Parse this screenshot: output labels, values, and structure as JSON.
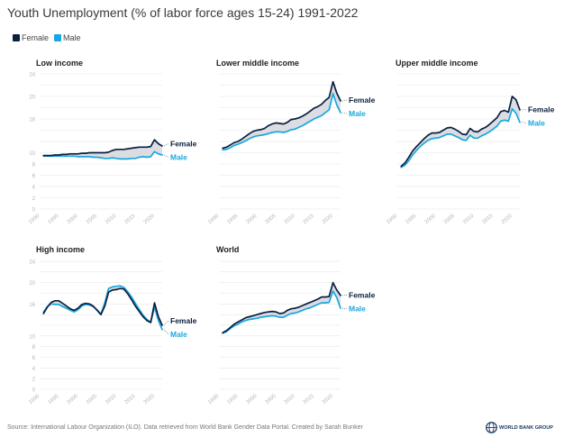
{
  "title": "Youth Unemployment (% of labor force ages 15-24) 1991-2022",
  "legend": [
    {
      "label": "Female",
      "color": "#0b1f3f"
    },
    {
      "label": "Male",
      "color": "#1aa7e0"
    }
  ],
  "footer": "Source: International Labour Organization (ILO). Data retrieved from World Bank Gender Data Portal. Created by Sarah Bunker",
  "logo_text": "WORLD BANK GROUP",
  "colors": {
    "female": "#0b1f3f",
    "male": "#1aa7e0",
    "band": "#dcdde3",
    "grid": "#e6e6e6",
    "tick": "#b5b5b5"
  },
  "chart_data": [
    {
      "type": "line",
      "title": "Low income",
      "x": [
        1991,
        1992,
        1993,
        1994,
        1995,
        1996,
        1997,
        1998,
        1999,
        2000,
        2001,
        2002,
        2003,
        2004,
        2005,
        2006,
        2007,
        2008,
        2009,
        2010,
        2011,
        2012,
        2013,
        2014,
        2015,
        2016,
        2017,
        2018,
        2019,
        2020,
        2021,
        2022
      ],
      "xticks": [
        1990,
        1995,
        2000,
        2005,
        2010,
        2015,
        2020
      ],
      "ylim": [
        0,
        24
      ],
      "yticks": [
        0,
        2,
        4,
        6,
        8,
        10,
        16,
        20,
        24
      ],
      "series": [
        {
          "name": "Female",
          "values": [
            9.5,
            9.5,
            9.5,
            9.6,
            9.6,
            9.7,
            9.7,
            9.8,
            9.8,
            9.8,
            9.9,
            9.9,
            10.0,
            10.0,
            10.0,
            10.0,
            10.0,
            10.1,
            10.4,
            10.6,
            10.6,
            10.6,
            10.7,
            10.8,
            10.9,
            11.0,
            11.0,
            11.0,
            11.1,
            12.3,
            11.6,
            11.2
          ]
        },
        {
          "name": "Male",
          "values": [
            9.4,
            9.4,
            9.4,
            9.4,
            9.4,
            9.4,
            9.4,
            9.4,
            9.4,
            9.3,
            9.3,
            9.3,
            9.3,
            9.2,
            9.2,
            9.1,
            9.0,
            9.0,
            9.1,
            9.0,
            8.9,
            8.9,
            8.9,
            9.0,
            9.0,
            9.2,
            9.3,
            9.2,
            9.3,
            10.2,
            9.8,
            9.6
          ]
        }
      ]
    },
    {
      "type": "line",
      "title": "Lower middle income",
      "x": [
        1991,
        1992,
        1993,
        1994,
        1995,
        1996,
        1997,
        1998,
        1999,
        2000,
        2001,
        2002,
        2003,
        2004,
        2005,
        2006,
        2007,
        2008,
        2009,
        2010,
        2011,
        2012,
        2013,
        2014,
        2015,
        2016,
        2017,
        2018,
        2019,
        2020,
        2021,
        2022
      ],
      "xticks": [
        1990,
        1995,
        2000,
        2005,
        2010,
        2015,
        2020
      ],
      "series": [
        {
          "name": "Female",
          "values": [
            10.8,
            11.0,
            11.4,
            11.8,
            12.0,
            12.4,
            12.9,
            13.4,
            13.8,
            14.0,
            14.1,
            14.3,
            14.8,
            15.1,
            15.3,
            15.2,
            15.1,
            15.4,
            15.9,
            16.0,
            16.2,
            16.5,
            16.9,
            17.4,
            17.9,
            18.2,
            18.6,
            19.3,
            19.8,
            22.6,
            20.6,
            19.2
          ]
        },
        {
          "name": "Male",
          "values": [
            10.5,
            10.6,
            10.9,
            11.3,
            11.5,
            11.8,
            12.1,
            12.5,
            12.8,
            13.0,
            13.1,
            13.2,
            13.4,
            13.6,
            13.7,
            13.7,
            13.6,
            13.8,
            14.1,
            14.2,
            14.5,
            14.8,
            15.2,
            15.6,
            16.0,
            16.3,
            16.6,
            17.1,
            17.6,
            20.5,
            18.5,
            17.1
          ]
        }
      ]
    },
    {
      "type": "line",
      "title": "Upper middle income",
      "x": [
        1991,
        1992,
        1993,
        1994,
        1995,
        1996,
        1997,
        1998,
        1999,
        2000,
        2001,
        2002,
        2003,
        2004,
        2005,
        2006,
        2007,
        2008,
        2009,
        2010,
        2011,
        2012,
        2013,
        2014,
        2015,
        2016,
        2017,
        2018,
        2019,
        2020,
        2021,
        2022
      ],
      "xticks": [
        1990,
        1995,
        2000,
        2005,
        2010,
        2015,
        2020
      ],
      "series": [
        {
          "name": "Female",
          "values": [
            7.6,
            8.2,
            9.2,
            10.3,
            11.1,
            11.8,
            12.5,
            13.1,
            13.5,
            13.5,
            13.6,
            14.0,
            14.4,
            14.5,
            14.2,
            13.8,
            13.3,
            13.2,
            14.3,
            13.8,
            13.7,
            14.2,
            14.5,
            15.0,
            15.6,
            16.2,
            17.3,
            17.5,
            17.2,
            20.0,
            19.4,
            17.6
          ]
        },
        {
          "name": "Male",
          "values": [
            7.4,
            7.8,
            8.6,
            9.6,
            10.4,
            11.1,
            11.7,
            12.2,
            12.5,
            12.6,
            12.7,
            13.0,
            13.3,
            13.3,
            13.0,
            12.7,
            12.3,
            12.2,
            13.1,
            12.6,
            12.6,
            13.0,
            13.3,
            13.7,
            14.2,
            14.7,
            15.6,
            15.8,
            15.6,
            17.8,
            17.0,
            15.4
          ]
        }
      ]
    },
    {
      "type": "line",
      "title": "High income",
      "x": [
        1991,
        1992,
        1993,
        1994,
        1995,
        1996,
        1997,
        1998,
        1999,
        2000,
        2001,
        2002,
        2003,
        2004,
        2005,
        2006,
        2007,
        2008,
        2009,
        2010,
        2011,
        2012,
        2013,
        2014,
        2015,
        2016,
        2017,
        2018,
        2019,
        2020,
        2021,
        2022
      ],
      "xticks": [
        1990,
        1995,
        2000,
        2005,
        2010,
        2015,
        2020
      ],
      "ylim": [
        0,
        24
      ],
      "yticks": [
        0,
        2,
        4,
        6,
        8,
        10,
        16,
        20,
        24
      ],
      "series": [
        {
          "name": "Female",
          "values": [
            14.2,
            15.4,
            16.3,
            16.6,
            16.6,
            16.1,
            15.6,
            15.1,
            14.8,
            15.2,
            15.9,
            16.1,
            16.0,
            15.6,
            14.8,
            14.0,
            15.6,
            18.2,
            18.6,
            18.7,
            18.9,
            18.8,
            17.9,
            16.8,
            15.6,
            14.6,
            13.6,
            12.9,
            12.5,
            16.2,
            13.6,
            12.0
          ]
        },
        {
          "name": "Male",
          "values": [
            14.5,
            15.5,
            16.0,
            15.9,
            15.9,
            15.5,
            15.2,
            14.8,
            14.5,
            14.9,
            15.6,
            15.9,
            15.8,
            15.5,
            14.9,
            14.1,
            16.2,
            18.9,
            19.2,
            19.3,
            19.4,
            19.1,
            18.3,
            17.3,
            16.1,
            15.0,
            13.9,
            13.1,
            12.6,
            15.4,
            12.9,
            11.2
          ]
        }
      ]
    },
    {
      "type": "line",
      "title": "World",
      "x": [
        1991,
        1992,
        1993,
        1994,
        1995,
        1996,
        1997,
        1998,
        1999,
        2000,
        2001,
        2002,
        2003,
        2004,
        2005,
        2006,
        2007,
        2008,
        2009,
        2010,
        2011,
        2012,
        2013,
        2014,
        2015,
        2016,
        2017,
        2018,
        2019,
        2020,
        2021,
        2022
      ],
      "xticks": [
        1990,
        1995,
        2000,
        2005,
        2010,
        2015,
        2020
      ],
      "series": [
        {
          "name": "Female",
          "values": [
            10.6,
            11.0,
            11.6,
            12.2,
            12.6,
            13.0,
            13.4,
            13.6,
            13.8,
            14.0,
            14.2,
            14.4,
            14.5,
            14.6,
            14.5,
            14.2,
            14.3,
            14.8,
            15.1,
            15.2,
            15.4,
            15.7,
            16.0,
            16.3,
            16.6,
            16.9,
            17.3,
            17.3,
            17.4,
            20.0,
            18.6,
            17.6
          ]
        },
        {
          "name": "Male",
          "values": [
            10.5,
            10.8,
            11.4,
            11.9,
            12.2,
            12.6,
            12.9,
            13.1,
            13.2,
            13.3,
            13.5,
            13.6,
            13.7,
            13.8,
            13.7,
            13.5,
            13.5,
            13.9,
            14.2,
            14.3,
            14.5,
            14.8,
            15.1,
            15.3,
            15.6,
            15.9,
            16.2,
            16.2,
            16.3,
            18.4,
            17.2,
            15.2
          ]
        }
      ]
    }
  ]
}
